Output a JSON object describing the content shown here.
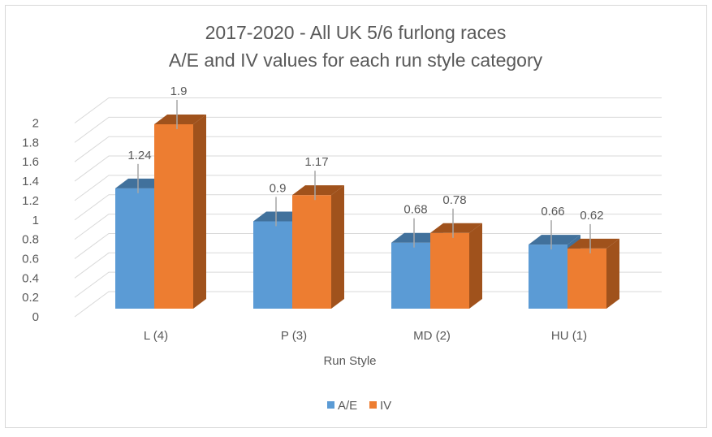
{
  "chart_data": {
    "type": "bar",
    "title_line1": "2017-2020 - All UK 5/6 furlong races",
    "title_line2": "A/E and IV values for each run style category",
    "xlabel": "Run Style",
    "ylabel": "",
    "categories": [
      "L (4)",
      "P (3)",
      "MD (2)",
      "HU (1)"
    ],
    "series": [
      {
        "name": "A/E",
        "values": [
          1.24,
          0.9,
          0.68,
          0.66
        ],
        "labels": [
          "1.24",
          "0.9",
          "0.68",
          "0.66"
        ],
        "color": "#5b9bd5",
        "side": "#41719c"
      },
      {
        "name": "IV",
        "values": [
          1.9,
          1.17,
          0.78,
          0.62
        ],
        "labels": [
          "1.9",
          "1.17",
          "0.78",
          "0.62"
        ],
        "color": "#ed7d31",
        "side": "#a0521c"
      }
    ],
    "yticks": [
      "0",
      "0.2",
      "0.4",
      "0.6",
      "0.8",
      "1",
      "1.2",
      "1.4",
      "1.6",
      "1.8",
      "2"
    ],
    "ylim": [
      0,
      2
    ],
    "grid": true,
    "legend": "bottom"
  }
}
